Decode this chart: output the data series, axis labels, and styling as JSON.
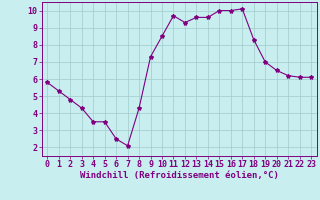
{
  "x": [
    0,
    1,
    2,
    3,
    4,
    5,
    6,
    7,
    8,
    9,
    10,
    11,
    12,
    13,
    14,
    15,
    16,
    17,
    18,
    19,
    20,
    21,
    22,
    23
  ],
  "y": [
    5.8,
    5.3,
    4.8,
    4.3,
    3.5,
    3.5,
    2.5,
    2.1,
    4.3,
    7.3,
    8.5,
    9.7,
    9.3,
    9.6,
    9.6,
    10.0,
    10.0,
    10.1,
    8.3,
    7.0,
    6.5,
    6.2,
    6.1,
    6.1
  ],
  "line_color": "#800080",
  "marker": "*",
  "marker_size": 3,
  "background_color": "#c8eef0",
  "grid_color": "#a0cccc",
  "xlabel": "Windchill (Refroidissement éolien,°C)",
  "xlabel_color": "#800080",
  "xlabel_fontsize": 6.5,
  "xlim": [
    -0.5,
    23.5
  ],
  "ylim": [
    1.5,
    10.5
  ],
  "yticks": [
    2,
    3,
    4,
    5,
    6,
    7,
    8,
    9,
    10
  ],
  "xticks": [
    0,
    1,
    2,
    3,
    4,
    5,
    6,
    7,
    8,
    9,
    10,
    11,
    12,
    13,
    14,
    15,
    16,
    17,
    18,
    19,
    20,
    21,
    22,
    23
  ],
  "tick_fontsize": 6.0,
  "tick_color": "#800080",
  "spine_color": "#800080",
  "linewidth": 0.8
}
